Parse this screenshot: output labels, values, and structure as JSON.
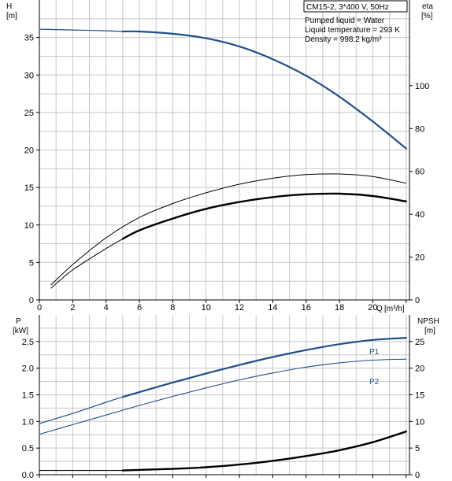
{
  "info_box": {
    "title": "CM15-2, 3*400 V, 50Hz",
    "liquid": "Pumped liquid = Water",
    "temperature": "Liquid temperature = 293 K",
    "density": "Density = 998.2 kg/m³"
  },
  "chart_data": [
    {
      "type": "line",
      "name": "head-efficiency",
      "ylabel": "H",
      "yunit": "[m]",
      "y2label": "eta",
      "y2unit": "[%]",
      "xlabel": "Q",
      "xunit": "[m³/h]",
      "xlim": [
        0,
        22.2
      ],
      "ylim": [
        0,
        40
      ],
      "y2lim": [
        0,
        140
      ],
      "grid": true,
      "xticks": [
        "0",
        "2",
        "4",
        "6",
        "8",
        "10",
        "12",
        "14",
        "16",
        "18",
        "20"
      ],
      "yticks": [
        "0",
        "5",
        "10",
        "15",
        "20",
        "25",
        "30",
        "35"
      ],
      "y2ticks": [
        "0",
        "20",
        "40",
        "60",
        "80",
        "100"
      ],
      "series": [
        {
          "role": "head-thin",
          "axis": "left",
          "color": "#1f4e8c",
          "width": 1.2,
          "x": [
            0,
            2,
            4,
            5
          ],
          "y": [
            36.1,
            36.0,
            35.9,
            35.8
          ]
        },
        {
          "role": "head",
          "axis": "left",
          "color": "#1f4e8c",
          "width": 2.2,
          "x": [
            5,
            6,
            8,
            10,
            12,
            14,
            16,
            18,
            20,
            22
          ],
          "y": [
            35.8,
            35.8,
            35.5,
            34.9,
            33.8,
            32.1,
            29.9,
            27.1,
            23.8,
            20.2
          ]
        },
        {
          "role": "eta-thin",
          "axis": "right",
          "color": "#000000",
          "width": 1,
          "x": [
            0.7,
            2,
            4,
            6,
            8,
            10,
            12,
            14,
            16,
            18,
            20,
            22
          ],
          "y": [
            7,
            16.5,
            29,
            38.5,
            45,
            50,
            54,
            56.8,
            58.5,
            58.8,
            57.6,
            54.5
          ]
        },
        {
          "role": "eta-npsh-thin",
          "axis": "right",
          "color": "#000000",
          "width": 1,
          "x": [
            0.7,
            2,
            4,
            5
          ],
          "y": [
            5.5,
            14,
            24,
            28.5
          ]
        },
        {
          "role": "eta",
          "axis": "right",
          "color": "#000000",
          "width": 2.4,
          "x": [
            5,
            6,
            8,
            10,
            12,
            14,
            16,
            18,
            20,
            22
          ],
          "y": [
            28.5,
            32.5,
            38,
            42.5,
            45.7,
            48,
            49.3,
            49.6,
            48.5,
            46
          ]
        }
      ]
    },
    {
      "type": "line",
      "name": "power-npsh",
      "ylabel": "P",
      "yunit": "[kW]",
      "y2label": "NPSH",
      "y2unit": "[m]",
      "xlim": [
        0,
        22.2
      ],
      "ylim": [
        0,
        3.0
      ],
      "y2lim": [
        0,
        30
      ],
      "grid": true,
      "yticks": [
        "0.0",
        "0.5",
        "1.0",
        "1.5",
        "2.0",
        "2.5"
      ],
      "y2ticks": [
        "0",
        "5",
        "10",
        "15",
        "20",
        "25"
      ],
      "series_labels": [
        "P1",
        "P2"
      ],
      "series": [
        {
          "name": "P1",
          "axis": "left",
          "color": "#1f4e8c",
          "width": 1.2,
          "x": [
            0,
            2,
            4,
            5
          ],
          "y": [
            0.96,
            1.15,
            1.36,
            1.46
          ]
        },
        {
          "name": "P1",
          "axis": "left",
          "color": "#1f4e8c",
          "width": 2.2,
          "x": [
            5,
            6,
            8,
            10,
            12,
            14,
            16,
            18,
            20,
            22
          ],
          "y": [
            1.46,
            1.55,
            1.73,
            1.9,
            2.06,
            2.21,
            2.34,
            2.45,
            2.53,
            2.57
          ]
        },
        {
          "name": "P2",
          "axis": "left",
          "color": "#1f4e8c",
          "width": 1.1,
          "x": [
            0,
            2,
            4,
            6,
            8,
            10,
            12,
            14,
            16,
            18,
            20,
            22
          ],
          "y": [
            0.76,
            0.94,
            1.12,
            1.3,
            1.47,
            1.63,
            1.78,
            1.91,
            2.02,
            2.1,
            2.15,
            2.17
          ]
        },
        {
          "role": "npsh-thin",
          "axis": "right",
          "color": "#000000",
          "width": 1.1,
          "x": [
            0,
            2,
            4,
            5
          ],
          "y": [
            0.8,
            0.8,
            0.8,
            0.8
          ]
        },
        {
          "role": "npsh",
          "axis": "right",
          "color": "#000000",
          "width": 2.4,
          "x": [
            5,
            8,
            10,
            12,
            14,
            16,
            18,
            20,
            22
          ],
          "y": [
            0.8,
            1.1,
            1.4,
            1.9,
            2.6,
            3.5,
            4.6,
            6.1,
            8.1
          ]
        }
      ]
    }
  ]
}
